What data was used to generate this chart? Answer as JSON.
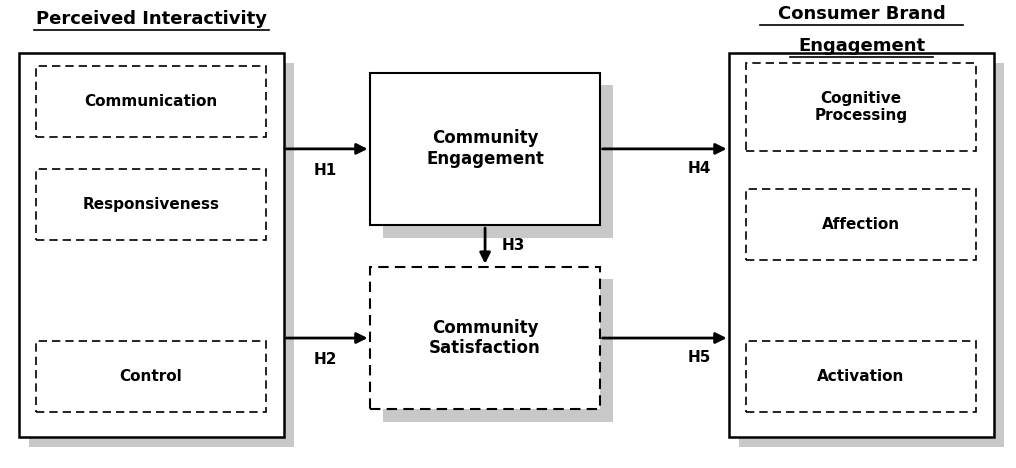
{
  "title_left": "Perceived Interactivity",
  "title_right_line1": "Consumer Brand",
  "title_right_line2": "Engagement",
  "left_boxes": [
    "Communication",
    "Responsiveness",
    "Control"
  ],
  "middle_box_solid": "Community\nEngagement",
  "middle_box_dashed": "Community\nSatisfaction",
  "right_boxes": [
    "Cognitive\nProcessing",
    "Affection",
    "Activation"
  ],
  "h_labels": [
    "H1",
    "H2",
    "H3",
    "H4",
    "H5"
  ],
  "bg_color": "#ffffff",
  "shadow_color": "#c8c8c8",
  "font_size": 11,
  "title_font_size": 13
}
